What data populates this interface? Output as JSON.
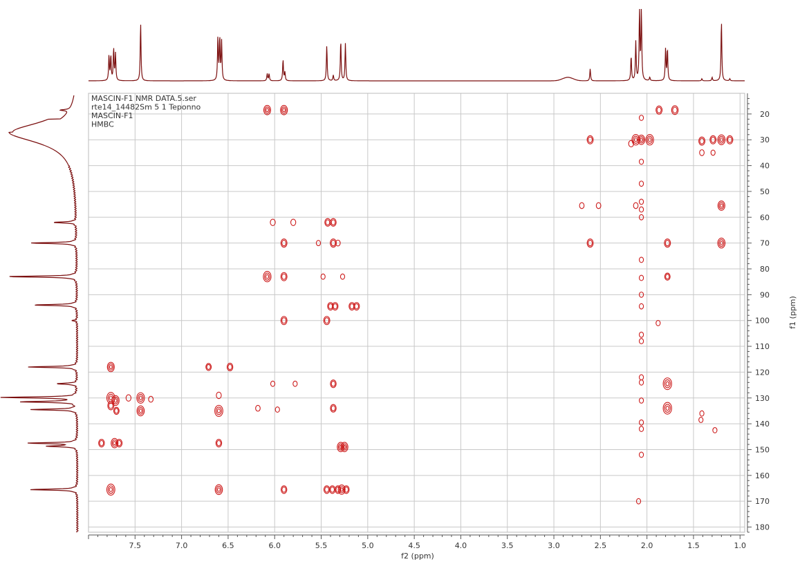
{
  "chart_data": {
    "type": "heatmap",
    "title_lines": [
      "MASCIN-F1 NMR DATA.5.ser",
      "rte14_14482Sm 5 1 Teponno",
      "MASCIN-F1",
      "HMBC"
    ],
    "xlabel": "f2 (ppm)",
    "ylabel": "f1 (ppm)",
    "xlim": [
      8.0,
      0.95
    ],
    "ylim": [
      12,
      182
    ],
    "x_ticks": [
      7.5,
      7.0,
      6.5,
      6.0,
      5.5,
      5.0,
      4.5,
      4.0,
      3.5,
      3.0,
      2.5,
      2.0,
      1.5,
      1.0
    ],
    "x_tick_labels": [
      "7.5",
      "7.0",
      "6.5",
      "6.0",
      "5.5",
      "5.0",
      "4.5",
      "4.0",
      "3.5",
      "3.0",
      "2.5",
      "2.0",
      "1.5",
      "1.0"
    ],
    "y_ticks": [
      20,
      30,
      40,
      50,
      60,
      70,
      80,
      90,
      100,
      110,
      120,
      130,
      140,
      150,
      160,
      170,
      180
    ],
    "y_tick_labels": [
      "20",
      "30",
      "40",
      "50",
      "60",
      "70",
      "80",
      "90",
      "100",
      "110",
      "120",
      "130",
      "140",
      "150",
      "160",
      "170",
      "180"
    ],
    "grid": true,
    "color": "#cc1a1a",
    "projection_color": "#7a0d0d",
    "cross_peaks": [
      {
        "x": 6.08,
        "y": 18.5,
        "s": 1.0
      },
      {
        "x": 5.9,
        "y": 18.5,
        "s": 1.0
      },
      {
        "x": 1.87,
        "y": 18.5,
        "s": 0.8
      },
      {
        "x": 1.7,
        "y": 18.5,
        "s": 0.9
      },
      {
        "x": 2.61,
        "y": 30.0,
        "s": 0.8
      },
      {
        "x": 2.12,
        "y": 30.0,
        "s": 1.2
      },
      {
        "x": 2.06,
        "y": 30.0,
        "s": 1.0
      },
      {
        "x": 1.97,
        "y": 30.0,
        "s": 1.2
      },
      {
        "x": 2.17,
        "y": 31.5,
        "s": 0.5
      },
      {
        "x": 1.41,
        "y": 30.5,
        "s": 0.8
      },
      {
        "x": 1.29,
        "y": 30.0,
        "s": 0.8
      },
      {
        "x": 1.2,
        "y": 30.0,
        "s": 1.1
      },
      {
        "x": 1.11,
        "y": 30.0,
        "s": 0.8
      },
      {
        "x": 1.41,
        "y": 35.0,
        "s": 0.4
      },
      {
        "x": 1.29,
        "y": 35.0,
        "s": 0.3
      },
      {
        "x": 2.06,
        "y": 21.5,
        "s": 0.3
      },
      {
        "x": 2.06,
        "y": 38.5,
        "s": 0.3
      },
      {
        "x": 2.06,
        "y": 47.0,
        "s": 0.3
      },
      {
        "x": 2.7,
        "y": 55.5,
        "s": 0.4
      },
      {
        "x": 2.52,
        "y": 55.5,
        "s": 0.4
      },
      {
        "x": 2.12,
        "y": 55.5,
        "s": 0.4
      },
      {
        "x": 2.06,
        "y": 54.0,
        "s": 0.3
      },
      {
        "x": 2.06,
        "y": 57.0,
        "s": 0.3
      },
      {
        "x": 1.2,
        "y": 55.5,
        "s": 1.0
      },
      {
        "x": 2.06,
        "y": 60.0,
        "s": 0.3
      },
      {
        "x": 6.02,
        "y": 62.0,
        "s": 0.5
      },
      {
        "x": 5.8,
        "y": 62.0,
        "s": 0.5
      },
      {
        "x": 5.43,
        "y": 62.0,
        "s": 0.7
      },
      {
        "x": 5.37,
        "y": 62.0,
        "s": 0.7
      },
      {
        "x": 2.61,
        "y": 70.0,
        "s": 0.8
      },
      {
        "x": 5.9,
        "y": 70.0,
        "s": 0.8
      },
      {
        "x": 5.53,
        "y": 70.0,
        "s": 0.3
      },
      {
        "x": 5.37,
        "y": 70.0,
        "s": 0.8
      },
      {
        "x": 5.32,
        "y": 70.0,
        "s": 0.4
      },
      {
        "x": 1.78,
        "y": 70.0,
        "s": 0.8
      },
      {
        "x": 1.2,
        "y": 70.0,
        "s": 1.1
      },
      {
        "x": 2.06,
        "y": 76.5,
        "s": 0.3
      },
      {
        "x": 6.08,
        "y": 83.0,
        "s": 1.2
      },
      {
        "x": 5.9,
        "y": 83.0,
        "s": 0.8
      },
      {
        "x": 5.48,
        "y": 83.0,
        "s": 0.3
      },
      {
        "x": 5.27,
        "y": 83.0,
        "s": 0.3
      },
      {
        "x": 1.78,
        "y": 83.0,
        "s": 0.6
      },
      {
        "x": 2.06,
        "y": 83.5,
        "s": 0.3
      },
      {
        "x": 2.06,
        "y": 90.0,
        "s": 0.3
      },
      {
        "x": 2.06,
        "y": 94.5,
        "s": 0.3
      },
      {
        "x": 5.4,
        "y": 94.5,
        "s": 0.7
      },
      {
        "x": 5.35,
        "y": 94.5,
        "s": 0.7
      },
      {
        "x": 5.17,
        "y": 94.5,
        "s": 0.7
      },
      {
        "x": 5.12,
        "y": 94.5,
        "s": 0.7
      },
      {
        "x": 5.9,
        "y": 100.0,
        "s": 0.8
      },
      {
        "x": 5.44,
        "y": 100.0,
        "s": 0.8
      },
      {
        "x": 1.88,
        "y": 101.0,
        "s": 0.3
      },
      {
        "x": 2.06,
        "y": 105.5,
        "s": 0.3
      },
      {
        "x": 2.06,
        "y": 108.0,
        "s": 0.3
      },
      {
        "x": 7.76,
        "y": 118.0,
        "s": 1.0
      },
      {
        "x": 6.71,
        "y": 118.0,
        "s": 0.6
      },
      {
        "x": 6.48,
        "y": 118.0,
        "s": 0.7
      },
      {
        "x": 2.06,
        "y": 122.0,
        "s": 0.3
      },
      {
        "x": 2.06,
        "y": 124.0,
        "s": 0.3
      },
      {
        "x": 6.02,
        "y": 124.5,
        "s": 0.3
      },
      {
        "x": 5.78,
        "y": 124.5,
        "s": 0.3
      },
      {
        "x": 5.37,
        "y": 124.5,
        "s": 0.7
      },
      {
        "x": 1.78,
        "y": 124.5,
        "s": 1.4
      },
      {
        "x": 7.76,
        "y": 130.0,
        "s": 1.3
      },
      {
        "x": 7.71,
        "y": 131.0,
        "s": 1.1
      },
      {
        "x": 7.57,
        "y": 130.0,
        "s": 0.5
      },
      {
        "x": 7.44,
        "y": 130.0,
        "s": 1.2
      },
      {
        "x": 7.33,
        "y": 130.5,
        "s": 0.4
      },
      {
        "x": 6.6,
        "y": 129.0,
        "s": 0.5
      },
      {
        "x": 2.06,
        "y": 131.0,
        "s": 0.3
      },
      {
        "x": 7.76,
        "y": 133.0,
        "s": 0.8
      },
      {
        "x": 7.7,
        "y": 135.0,
        "s": 0.6
      },
      {
        "x": 7.44,
        "y": 135.0,
        "s": 1.1
      },
      {
        "x": 6.6,
        "y": 135.0,
        "s": 1.3
      },
      {
        "x": 6.18,
        "y": 134.0,
        "s": 0.4
      },
      {
        "x": 5.97,
        "y": 134.5,
        "s": 0.3
      },
      {
        "x": 5.37,
        "y": 134.0,
        "s": 0.7
      },
      {
        "x": 1.78,
        "y": 134.0,
        "s": 1.4
      },
      {
        "x": 1.41,
        "y": 136.0,
        "s": 0.3
      },
      {
        "x": 1.42,
        "y": 138.5,
        "s": 0.3
      },
      {
        "x": 2.06,
        "y": 139.5,
        "s": 0.3
      },
      {
        "x": 2.06,
        "y": 142.0,
        "s": 0.3
      },
      {
        "x": 1.27,
        "y": 142.5,
        "s": 0.3
      },
      {
        "x": 7.86,
        "y": 147.5,
        "s": 0.7
      },
      {
        "x": 7.72,
        "y": 147.5,
        "s": 1.0
      },
      {
        "x": 7.67,
        "y": 147.5,
        "s": 0.7
      },
      {
        "x": 6.6,
        "y": 147.5,
        "s": 0.7
      },
      {
        "x": 5.29,
        "y": 149.0,
        "s": 1.0
      },
      {
        "x": 5.25,
        "y": 149.0,
        "s": 1.0
      },
      {
        "x": 2.06,
        "y": 152.0,
        "s": 0.3
      },
      {
        "x": 7.76,
        "y": 165.5,
        "s": 1.3
      },
      {
        "x": 6.6,
        "y": 165.5,
        "s": 1.1
      },
      {
        "x": 5.9,
        "y": 165.5,
        "s": 0.7
      },
      {
        "x": 5.44,
        "y": 165.5,
        "s": 0.7
      },
      {
        "x": 5.38,
        "y": 165.5,
        "s": 0.7
      },
      {
        "x": 5.32,
        "y": 165.5,
        "s": 0.7
      },
      {
        "x": 5.28,
        "y": 165.5,
        "s": 1.0
      },
      {
        "x": 5.23,
        "y": 165.5,
        "s": 0.7
      },
      {
        "x": 2.09,
        "y": 170.0,
        "s": 0.3
      }
    ],
    "f2_projection_peaks": [
      {
        "x": 7.78,
        "h": 0.35
      },
      {
        "x": 7.76,
        "h": 0.35
      },
      {
        "x": 7.73,
        "h": 0.45
      },
      {
        "x": 7.71,
        "h": 0.38
      },
      {
        "x": 7.44,
        "h": 0.82
      },
      {
        "x": 6.61,
        "h": 0.6
      },
      {
        "x": 6.59,
        "h": 0.6
      },
      {
        "x": 6.57,
        "h": 0.55
      },
      {
        "x": 6.08,
        "h": 0.1
      },
      {
        "x": 6.06,
        "h": 0.1
      },
      {
        "x": 5.91,
        "h": 0.3
      },
      {
        "x": 5.89,
        "h": 0.12
      },
      {
        "x": 5.44,
        "h": 0.5
      },
      {
        "x": 5.37,
        "h": 0.08
      },
      {
        "x": 5.29,
        "h": 0.57
      },
      {
        "x": 5.24,
        "h": 0.53
      },
      {
        "x": 2.61,
        "h": 0.17
      },
      {
        "x": 2.17,
        "h": 0.35
      },
      {
        "x": 2.12,
        "h": 0.55
      },
      {
        "x": 2.08,
        "h": 1.0
      },
      {
        "x": 2.06,
        "h": 1.0
      },
      {
        "x": 1.97,
        "h": 0.05
      },
      {
        "x": 1.8,
        "h": 0.45
      },
      {
        "x": 1.78,
        "h": 0.45
      },
      {
        "x": 1.41,
        "h": 0.03
      },
      {
        "x": 1.3,
        "h": 0.05
      },
      {
        "x": 1.2,
        "h": 0.85
      },
      {
        "x": 1.11,
        "h": 0.03
      }
    ],
    "f1_projection_peaks": [
      {
        "y": 18.5,
        "h": 0.12
      },
      {
        "y": 62.0,
        "h": 0.3
      },
      {
        "y": 70.0,
        "h": 0.6
      },
      {
        "y": 83.0,
        "h": 0.92
      },
      {
        "y": 94.0,
        "h": 0.57
      },
      {
        "y": 100.0,
        "h": 0.06
      },
      {
        "y": 118.0,
        "h": 0.64
      },
      {
        "y": 124.5,
        "h": 0.28
      },
      {
        "y": 129.8,
        "h": 1.0
      },
      {
        "y": 131.5,
        "h": 0.75
      },
      {
        "y": 134.5,
        "h": 0.6
      },
      {
        "y": 147.5,
        "h": 0.64
      },
      {
        "y": 148.7,
        "h": 0.4
      },
      {
        "y": 165.5,
        "h": 0.62
      }
    ]
  }
}
